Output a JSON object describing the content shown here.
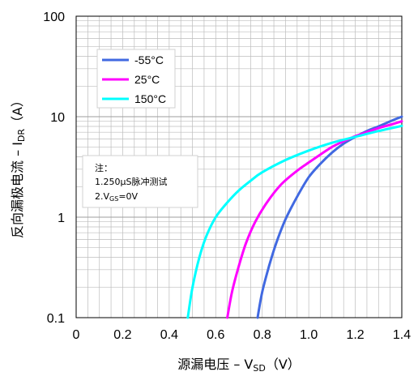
{
  "chart_data": {
    "type": "line",
    "xlabel_main": "源漏电压 – V",
    "xlabel_sub": "SD",
    "xlabel_unit": "（V）",
    "ylabel_main": "反向漏极电流 – I",
    "ylabel_sub": "DR",
    "ylabel_unit": "（A）",
    "xlim": [
      0,
      1.4
    ],
    "ylim": [
      0.1,
      100
    ],
    "yscale": "log",
    "grid": true,
    "x_ticks": [
      "0",
      "0.2",
      "0.4",
      "0.6",
      "0.8",
      "1.0",
      "1.2",
      "1.4"
    ],
    "y_ticks": [
      "0.1",
      "1",
      "10",
      "100"
    ],
    "legend_position": "upper-left",
    "series": [
      {
        "name": "-55°C",
        "color": "#4169e1",
        "x": [
          0.78,
          0.8,
          0.83,
          0.86,
          0.9,
          0.95,
          1.0,
          1.05,
          1.1,
          1.15,
          1.2,
          1.25,
          1.3,
          1.35,
          1.4
        ],
        "y": [
          0.1,
          0.18,
          0.33,
          0.55,
          0.95,
          1.6,
          2.5,
          3.4,
          4.4,
          5.4,
          6.3,
          7.2,
          8.0,
          9.0,
          10.0
        ]
      },
      {
        "name": "25°C",
        "color": "#ff00ff",
        "x": [
          0.65,
          0.67,
          0.7,
          0.73,
          0.77,
          0.82,
          0.88,
          0.95,
          1.0,
          1.05,
          1.1,
          1.15,
          1.2,
          1.25,
          1.3,
          1.35,
          1.4
        ],
        "y": [
          0.1,
          0.18,
          0.33,
          0.55,
          0.9,
          1.4,
          2.1,
          2.9,
          3.5,
          4.2,
          5.0,
          5.7,
          6.4,
          7.0,
          7.7,
          8.3,
          9.0
        ]
      },
      {
        "name": "150°C",
        "color": "#00ffff",
        "x": [
          0.48,
          0.5,
          0.53,
          0.56,
          0.6,
          0.65,
          0.7,
          0.75,
          0.8,
          0.9,
          1.0,
          1.1,
          1.2,
          1.3,
          1.4
        ],
        "y": [
          0.1,
          0.2,
          0.4,
          0.65,
          1.0,
          1.4,
          1.85,
          2.3,
          2.8,
          3.7,
          4.6,
          5.5,
          6.3,
          7.2,
          8.1
        ]
      }
    ],
    "note": {
      "title": "注：",
      "lines": [
        "1.250μS脉冲测试",
        "2.V",
        "GS",
        "=0V"
      ]
    }
  }
}
